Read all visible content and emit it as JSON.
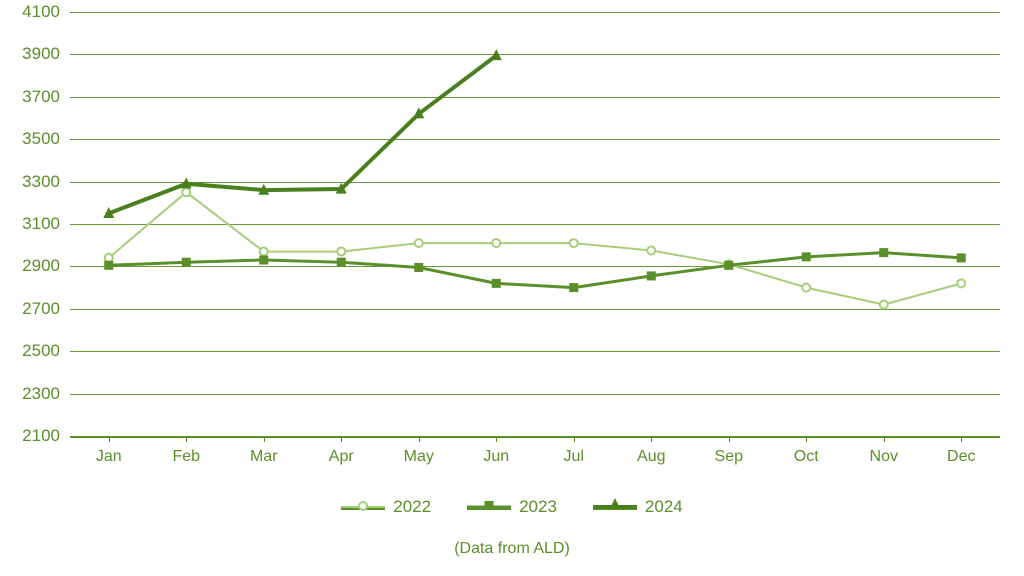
{
  "chart": {
    "type": "line",
    "background_color": "#ffffff",
    "axis_color": "#5a8f29",
    "grid_color": "#5a8f29",
    "label_color": "#5a8f29",
    "label_fontsize": 17,
    "footer_text": "(Data from ALD)",
    "footer_fontsize": 16,
    "ylim": [
      2100,
      4100
    ],
    "ytick_step": 200,
    "yticks": [
      2100,
      2300,
      2500,
      2700,
      2900,
      3100,
      3300,
      3500,
      3700,
      3900,
      4100
    ],
    "categories": [
      "Jan",
      "Feb",
      "Mar",
      "Apr",
      "May",
      "Jun",
      "Jul",
      "Aug",
      "Sep",
      "Oct",
      "Nov",
      "Dec"
    ],
    "series": [
      {
        "name": "2022",
        "color": "#a6ce7a",
        "line_width": 2,
        "marker": "circle",
        "marker_size": 8,
        "marker_fill": "#ffffff",
        "marker_stroke": "#a6ce7a",
        "marker_stroke_width": 2,
        "values": [
          2940,
          3250,
          2970,
          2970,
          3010,
          3010,
          3010,
          2975,
          2910,
          2800,
          2720,
          2820
        ]
      },
      {
        "name": "2023",
        "color": "#5a8f29",
        "line_width": 3,
        "marker": "square",
        "marker_size": 9,
        "marker_fill": "#5a8f29",
        "marker_stroke": "#5a8f29",
        "marker_stroke_width": 0,
        "values": [
          2905,
          2920,
          2930,
          2920,
          2895,
          2820,
          2800,
          2855,
          2905,
          2945,
          2965,
          2940
        ]
      },
      {
        "name": "2024",
        "color": "#4a7f1f",
        "line_width": 4,
        "marker": "triangle",
        "marker_size": 11,
        "marker_fill": "#4a7f1f",
        "marker_stroke": "#4a7f1f",
        "marker_stroke_width": 0,
        "values": [
          3150,
          3290,
          3260,
          3265,
          3620,
          3895
        ]
      }
    ],
    "legend": {
      "position": "bottom",
      "fontsize": 17
    }
  }
}
